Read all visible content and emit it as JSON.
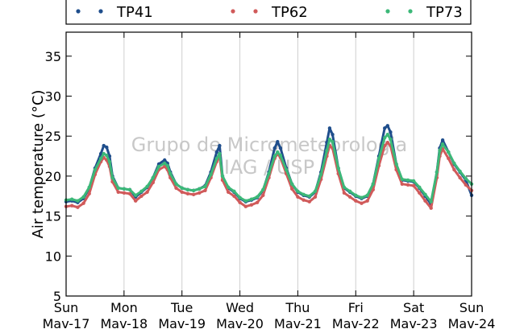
{
  "chart_data": {
    "type": "line",
    "ylabel": "Air temperature (°C)",
    "ylim": [
      5,
      38
    ],
    "yticks": [
      5,
      10,
      15,
      20,
      25,
      30,
      35
    ],
    "xlim": [
      0,
      7
    ],
    "xticks": [
      {
        "day": "Sun",
        "date": "Mav-17"
      },
      {
        "day": "Mon",
        "date": "Mav-18"
      },
      {
        "day": "Tue",
        "date": "Mav-19"
      },
      {
        "day": "Wed",
        "date": "Mav-20"
      },
      {
        "day": "Thu",
        "date": "Mav-21"
      },
      {
        "day": "Fri",
        "date": "Mav-22"
      },
      {
        "day": "Sat",
        "date": "Mav-23"
      },
      {
        "day": "Sun",
        "date": "Mav-24"
      }
    ],
    "grid": "vertical",
    "legend_position": "top",
    "watermark": [
      "Grupo de Micrometeorologia",
      "IAG / USP"
    ],
    "series": [
      {
        "name": "TP41",
        "color": "#1f4e8c",
        "x": [
          0,
          0.1,
          0.2,
          0.3,
          0.4,
          0.5,
          0.6,
          0.65,
          0.7,
          0.75,
          0.8,
          0.9,
          1.0,
          1.1,
          1.2,
          1.3,
          1.4,
          1.5,
          1.6,
          1.7,
          1.75,
          1.8,
          1.9,
          2.0,
          2.1,
          2.2,
          2.3,
          2.4,
          2.5,
          2.6,
          2.65,
          2.7,
          2.8,
          2.9,
          3.0,
          3.1,
          3.2,
          3.3,
          3.4,
          3.5,
          3.6,
          3.65,
          3.7,
          3.8,
          3.9,
          4.0,
          4.1,
          4.2,
          4.3,
          4.4,
          4.5,
          4.55,
          4.6,
          4.7,
          4.8,
          4.9,
          5.0,
          5.1,
          5.2,
          5.3,
          5.4,
          5.5,
          5.55,
          5.6,
          5.7,
          5.8,
          5.9,
          6.0,
          6.1,
          6.2,
          6.3,
          6.4,
          6.45,
          6.5,
          6.6,
          6.7,
          6.8,
          6.9,
          7.0
        ],
        "values": [
          16.8,
          16.9,
          16.7,
          17.2,
          18.5,
          21.0,
          22.8,
          23.8,
          23.6,
          22.5,
          20.0,
          18.5,
          18.4,
          18.3,
          17.4,
          18.0,
          18.6,
          19.8,
          21.5,
          22.0,
          21.6,
          20.5,
          19.0,
          18.5,
          18.3,
          18.2,
          18.4,
          18.8,
          20.5,
          23.0,
          23.8,
          20.0,
          18.5,
          18.0,
          17.2,
          16.8,
          17.0,
          17.3,
          18.2,
          20.5,
          23.5,
          24.3,
          23.5,
          21.0,
          19.0,
          18.0,
          17.6,
          17.4,
          18.0,
          20.5,
          24.2,
          26.0,
          25.2,
          21.0,
          18.5,
          18.0,
          17.5,
          17.2,
          17.5,
          19.0,
          22.5,
          26.0,
          26.3,
          25.5,
          21.5,
          19.5,
          19.4,
          19.3,
          18.5,
          17.5,
          16.5,
          20.5,
          23.5,
          24.5,
          23.0,
          21.5,
          20.5,
          19.5,
          17.6
        ]
      },
      {
        "name": "TP62",
        "color": "#d05a5a",
        "x": [
          0,
          0.1,
          0.2,
          0.3,
          0.4,
          0.5,
          0.6,
          0.65,
          0.7,
          0.75,
          0.8,
          0.9,
          1.0,
          1.1,
          1.2,
          1.3,
          1.4,
          1.5,
          1.6,
          1.7,
          1.75,
          1.8,
          1.9,
          2.0,
          2.1,
          2.2,
          2.3,
          2.4,
          2.5,
          2.6,
          2.65,
          2.7,
          2.8,
          2.9,
          3.0,
          3.1,
          3.2,
          3.3,
          3.4,
          3.5,
          3.6,
          3.65,
          3.7,
          3.8,
          3.9,
          4.0,
          4.1,
          4.2,
          4.3,
          4.4,
          4.5,
          4.55,
          4.6,
          4.7,
          4.8,
          4.9,
          5.0,
          5.1,
          5.2,
          5.3,
          5.4,
          5.5,
          5.55,
          5.6,
          5.7,
          5.8,
          5.9,
          6.0,
          6.1,
          6.2,
          6.3,
          6.4,
          6.45,
          6.5,
          6.6,
          6.7,
          6.8,
          6.9,
          7.0
        ],
        "values": [
          16.2,
          16.3,
          16.1,
          16.6,
          17.8,
          20.2,
          21.8,
          22.3,
          22.0,
          21.2,
          19.3,
          18.0,
          17.9,
          17.8,
          16.9,
          17.5,
          18.0,
          19.2,
          20.8,
          21.2,
          20.8,
          19.8,
          18.5,
          18.0,
          17.8,
          17.7,
          17.9,
          18.2,
          19.8,
          21.8,
          22.5,
          19.5,
          18.0,
          17.5,
          16.7,
          16.2,
          16.4,
          16.7,
          17.6,
          19.8,
          22.2,
          22.8,
          22.3,
          20.3,
          18.4,
          17.4,
          17.0,
          16.8,
          17.4,
          19.6,
          22.5,
          23.8,
          23.5,
          20.3,
          17.9,
          17.4,
          16.9,
          16.6,
          16.9,
          18.3,
          21.3,
          23.8,
          24.2,
          23.8,
          20.8,
          19.0,
          18.9,
          18.8,
          17.9,
          16.9,
          16.0,
          19.8,
          22.5,
          23.4,
          22.2,
          20.8,
          19.8,
          18.9,
          18.2
        ]
      },
      {
        "name": "TP73",
        "color": "#3cb878",
        "x": [
          0,
          0.1,
          0.2,
          0.3,
          0.4,
          0.5,
          0.6,
          0.65,
          0.7,
          0.75,
          0.8,
          0.9,
          1.0,
          1.1,
          1.2,
          1.3,
          1.4,
          1.5,
          1.6,
          1.7,
          1.75,
          1.8,
          1.9,
          2.0,
          2.1,
          2.2,
          2.3,
          2.4,
          2.5,
          2.6,
          2.65,
          2.7,
          2.8,
          2.9,
          3.0,
          3.1,
          3.2,
          3.3,
          3.4,
          3.5,
          3.6,
          3.65,
          3.7,
          3.8,
          3.9,
          4.0,
          4.1,
          4.2,
          4.3,
          4.4,
          4.5,
          4.55,
          4.6,
          4.7,
          4.8,
          4.9,
          5.0,
          5.1,
          5.2,
          5.3,
          5.4,
          5.5,
          5.55,
          5.6,
          5.7,
          5.8,
          5.9,
          6.0,
          6.1,
          6.2,
          6.3,
          6.4,
          6.45,
          6.5,
          6.6,
          6.7,
          6.8,
          6.9,
          7.0
        ],
        "values": [
          17.0,
          17.1,
          16.9,
          17.4,
          18.6,
          20.8,
          22.2,
          22.8,
          22.6,
          21.8,
          19.8,
          18.5,
          18.4,
          18.3,
          17.6,
          18.1,
          18.7,
          19.8,
          21.2,
          21.6,
          21.3,
          20.3,
          19.0,
          18.5,
          18.3,
          18.2,
          18.4,
          18.7,
          20.2,
          22.2,
          22.8,
          20.0,
          18.6,
          18.1,
          17.3,
          16.9,
          17.1,
          17.4,
          18.3,
          20.3,
          22.5,
          23.0,
          22.6,
          20.8,
          19.0,
          18.1,
          17.7,
          17.5,
          18.1,
          20.2,
          23.2,
          24.6,
          24.3,
          21.0,
          18.6,
          18.1,
          17.6,
          17.3,
          17.6,
          19.0,
          22.2,
          24.8,
          25.2,
          24.6,
          21.5,
          19.6,
          19.5,
          19.4,
          18.6,
          17.7,
          16.8,
          20.5,
          23.2,
          24.0,
          23.0,
          21.6,
          20.6,
          19.7,
          19.0
        ]
      }
    ]
  }
}
